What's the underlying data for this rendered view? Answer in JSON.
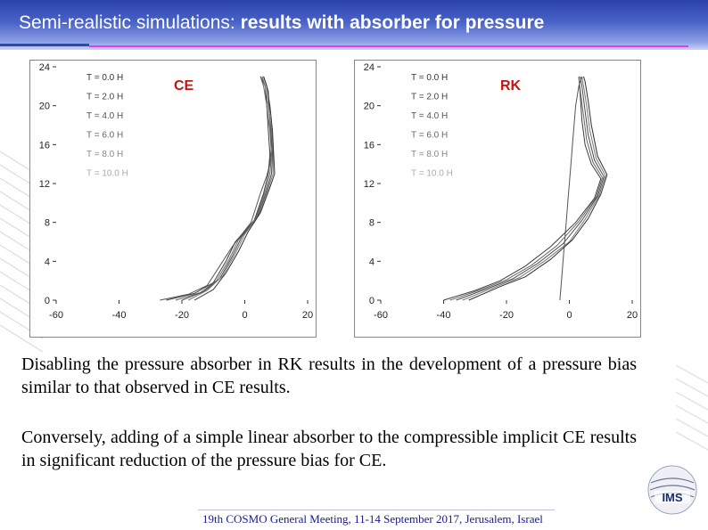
{
  "header": {
    "title_plain": "Semi-realistic simulations: ",
    "title_bold": "results with absorber for pressure"
  },
  "paragraphs": [
    "Disabling the pressure absorber in RK results in the development of a pressure bias similar to that observed in CE results.",
    "Conversely, adding of a simple linear absorber to the compressible implicit CE results in significant reduction of the pressure bias for CE."
  ],
  "footer": "19th COSMO General Meeting, 11-14 September 2017, Jerusalem, Israel",
  "logo_text": "IMS",
  "colors": {
    "accent": "#2b43a8",
    "rule": "#e040e0",
    "label_red": "#cc1111",
    "line": "#444444"
  },
  "chart_data": [
    {
      "type": "line",
      "label": "CE",
      "xlim": [
        -60,
        20
      ],
      "ylim": [
        0,
        24
      ],
      "xticks": [
        -60,
        -40,
        -20,
        0,
        20
      ],
      "yticks": [
        0,
        4,
        8,
        12,
        16,
        20,
        24
      ],
      "legend": [
        "T = 0.0 H",
        "T = 2.0 H",
        "T = 4.0 H",
        "T = 6.0 H",
        "T = 8.0 H",
        "T = 10.0 H"
      ],
      "legend_placement": "top-left",
      "series": [
        {
          "x": [
            -27,
            -18,
            -12,
            -8,
            -4,
            2,
            5,
            7,
            8,
            8.5,
            8,
            7.5,
            6
          ],
          "y": [
            0,
            0.6,
            1.5,
            3.5,
            5.5,
            8,
            11,
            12.8,
            14,
            16,
            18.5,
            21.5,
            23
          ]
        },
        {
          "x": [
            -25,
            -16,
            -10,
            -6,
            -3,
            3,
            6,
            7.5,
            8,
            7.5,
            7,
            6.5,
            5
          ],
          "y": [
            0,
            0.7,
            1.8,
            4,
            6,
            8.2,
            11,
            13,
            15,
            17.5,
            20,
            22,
            23
          ]
        },
        {
          "x": [
            -22,
            -14,
            -9,
            -5,
            -2,
            3.5,
            6.5,
            8,
            8.5,
            8,
            7,
            6,
            5
          ],
          "y": [
            0,
            0.8,
            2,
            4.2,
            6.2,
            8.4,
            11.2,
            13,
            15,
            17.5,
            20,
            22,
            23
          ]
        },
        {
          "x": [
            -20,
            -13,
            -8,
            -4,
            -1,
            4,
            7,
            8.5,
            8.8,
            8.5,
            7.5,
            6.5,
            5.5
          ],
          "y": [
            0,
            0.9,
            2.2,
            4.5,
            6.5,
            8.6,
            11.3,
            13,
            15,
            17.5,
            20,
            22,
            23
          ]
        },
        {
          "x": [
            -18,
            -12,
            -7,
            -3,
            0,
            4.5,
            7.5,
            9,
            9,
            8.5,
            7.5,
            6.5,
            5.5
          ],
          "y": [
            0,
            1,
            2.5,
            4.8,
            6.8,
            8.8,
            11.5,
            13,
            15,
            17.5,
            20,
            22,
            23
          ]
        },
        {
          "x": [
            -16,
            -10,
            -6,
            -2,
            1,
            5,
            8,
            9.5,
            9.2,
            8.8,
            8,
            7,
            6
          ],
          "y": [
            0,
            1.1,
            2.8,
            5,
            7,
            9,
            11.6,
            13,
            15,
            17.5,
            20,
            22,
            23
          ]
        }
      ]
    },
    {
      "type": "line",
      "label": "RK",
      "xlim": [
        -60,
        20
      ],
      "ylim": [
        0,
        24
      ],
      "xticks": [
        -60,
        -40,
        -20,
        0,
        20
      ],
      "yticks": [
        0,
        4,
        8,
        12,
        16,
        20,
        24
      ],
      "legend": [
        "T = 0.0 H",
        "T = 2.0 H",
        "T = 4.0 H",
        "T = 6.0 H",
        "T = 8.0 H",
        "T = 10.0 H"
      ],
      "legend_placement": "top-left",
      "series": [
        {
          "x": [
            -3,
            -2.5,
            -2,
            -1.5,
            -1,
            -0.5,
            0,
            0.5,
            1,
            1.5,
            2,
            3,
            4
          ],
          "y": [
            0,
            2,
            4,
            6,
            8,
            10,
            12,
            14,
            16,
            18,
            20,
            22,
            23
          ]
        },
        {
          "x": [
            -40,
            -30,
            -22,
            -14,
            -6,
            2,
            8,
            10,
            7,
            5,
            4,
            3.5,
            3
          ],
          "y": [
            0,
            1,
            2,
            3.5,
            5.5,
            8,
            10.5,
            12.5,
            14,
            16,
            18.5,
            21,
            23
          ]
        },
        {
          "x": [
            -38,
            -28,
            -20,
            -12,
            -4,
            3,
            8.5,
            10.5,
            7.5,
            5.5,
            4.5,
            3.5,
            3
          ],
          "y": [
            0,
            1.1,
            2.1,
            3.6,
            5.6,
            8.1,
            10.6,
            12.6,
            14.2,
            16.5,
            19,
            21.5,
            23
          ]
        },
        {
          "x": [
            -36,
            -26,
            -18,
            -10,
            -2,
            4,
            9,
            11,
            8,
            6,
            5,
            4,
            3.5
          ],
          "y": [
            0,
            1.2,
            2.2,
            3.8,
            5.8,
            8.2,
            10.7,
            12.7,
            14.4,
            17,
            19.5,
            22,
            23
          ]
        },
        {
          "x": [
            -34,
            -24,
            -16,
            -8,
            0,
            5,
            9.5,
            11.5,
            8.5,
            6.5,
            5.5,
            4.5,
            4
          ],
          "y": [
            0,
            1.3,
            2.3,
            4,
            6,
            8.3,
            10.8,
            12.8,
            14.6,
            17.5,
            20,
            22,
            23
          ]
        },
        {
          "x": [
            -32,
            -22,
            -14,
            -6,
            1,
            6,
            10,
            12,
            9,
            7,
            6,
            5,
            4.5
          ],
          "y": [
            0,
            1.4,
            2.4,
            4.2,
            6.2,
            8.4,
            10.9,
            12.9,
            14.8,
            18,
            20.5,
            22.5,
            23
          ]
        }
      ]
    }
  ]
}
